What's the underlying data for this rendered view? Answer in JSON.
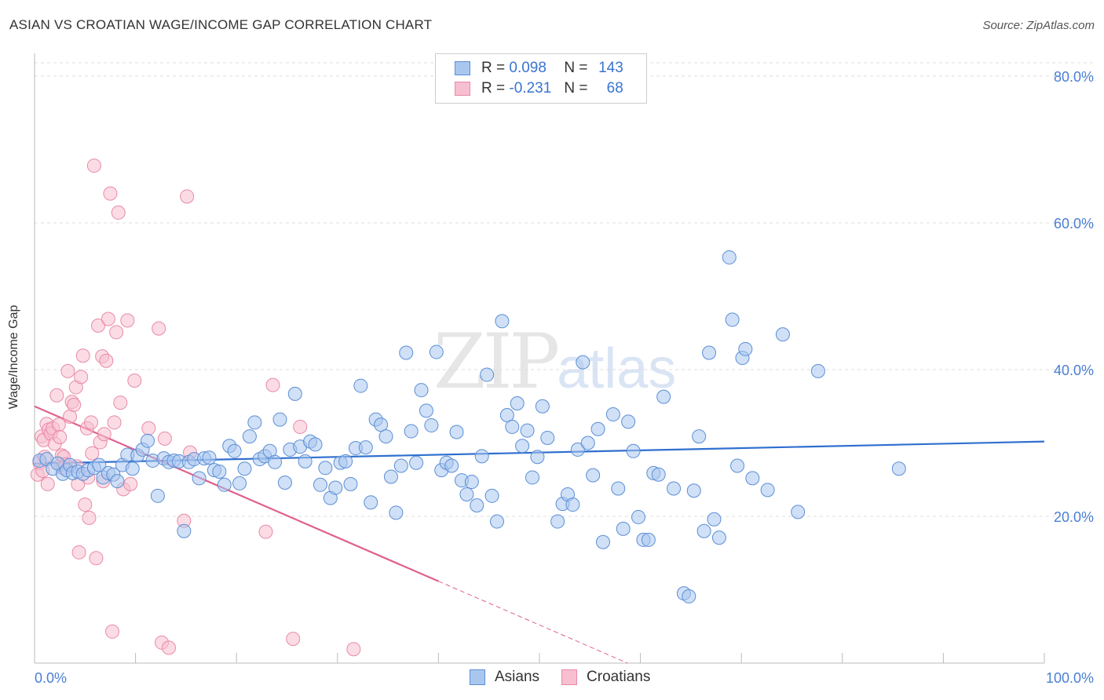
{
  "title": "ASIAN VS CROATIAN WAGE/INCOME GAP CORRELATION CHART",
  "source": "Source: ZipAtlas.com",
  "watermark": {
    "zip": "ZIP",
    "atlas": "atlas"
  },
  "legend": {
    "rows": [
      {
        "r_label": "R =",
        "r_value": "0.098",
        "n_label": "N =",
        "n_value": "143"
      },
      {
        "r_label": "R =",
        "r_value": "-0.231",
        "n_label": "N =",
        "n_value": "68"
      }
    ]
  },
  "bottom_legend": {
    "asians": "Asians",
    "croatians": "Croatians"
  },
  "colors": {
    "asians_fill": "#a9c7ee",
    "asians_stroke": "#5b8fd6",
    "asians_line": "#2f6fcf",
    "croatians_fill": "#f7bfd0",
    "croatians_stroke": "#e98aa8",
    "croatians_line": "#e0608e",
    "grid": "#dddddd",
    "tick_label": "#4a7fd4"
  },
  "chart_data": {
    "type": "scatter",
    "title": "ASIAN VS CROATIAN WAGE/INCOME GAP CORRELATION CHART",
    "xlabel": "",
    "ylabel": "Wage/Income Gap",
    "xlim": [
      0,
      100
    ],
    "ylim": [
      0,
      80
    ],
    "x_tick_labels": [
      "0.0%",
      "100.0%"
    ],
    "y_ticks": [
      20,
      40,
      60,
      80
    ],
    "y_tick_labels": [
      "20.0%",
      "40.0%",
      "60.0%",
      "80.0%"
    ],
    "series": [
      {
        "name": "Asians",
        "r": 0.098,
        "n": 143,
        "trend": {
          "x0": 0,
          "y0": 27.2,
          "x1": 100,
          "y1": 30.2,
          "solid_to": 100
        },
        "points": [
          [
            0.5,
            27.6
          ],
          [
            1.2,
            27.8
          ],
          [
            1.8,
            26.5
          ],
          [
            2.3,
            27.2
          ],
          [
            2.8,
            25.8
          ],
          [
            3.2,
            26.3
          ],
          [
            3.5,
            27.0
          ],
          [
            3.8,
            25.9
          ],
          [
            4.3,
            26.1
          ],
          [
            4.8,
            25.8
          ],
          [
            5.3,
            26.3
          ],
          [
            5.9,
            26.6
          ],
          [
            6.4,
            27.0
          ],
          [
            6.8,
            25.3
          ],
          [
            7.3,
            25.9
          ],
          [
            7.8,
            25.7
          ],
          [
            8.2,
            24.8
          ],
          [
            8.7,
            27.0
          ],
          [
            9.2,
            28.4
          ],
          [
            9.7,
            26.5
          ],
          [
            10.2,
            28.3
          ],
          [
            10.7,
            29.1
          ],
          [
            11.2,
            30.3
          ],
          [
            11.7,
            27.6
          ],
          [
            12.2,
            22.8
          ],
          [
            12.8,
            27.9
          ],
          [
            13.3,
            27.4
          ],
          [
            13.8,
            27.6
          ],
          [
            14.3,
            27.5
          ],
          [
            14.8,
            18.0
          ],
          [
            15.3,
            27.4
          ],
          [
            15.8,
            27.8
          ],
          [
            16.3,
            25.2
          ],
          [
            16.8,
            27.9
          ],
          [
            17.3,
            28.0
          ],
          [
            17.8,
            26.3
          ],
          [
            18.3,
            26.1
          ],
          [
            18.8,
            24.3
          ],
          [
            19.3,
            29.6
          ],
          [
            19.8,
            28.9
          ],
          [
            20.3,
            24.5
          ],
          [
            20.8,
            26.5
          ],
          [
            21.3,
            30.9
          ],
          [
            21.8,
            32.8
          ],
          [
            22.3,
            27.8
          ],
          [
            22.8,
            28.2
          ],
          [
            23.3,
            28.9
          ],
          [
            23.8,
            27.4
          ],
          [
            24.3,
            33.2
          ],
          [
            24.8,
            24.6
          ],
          [
            25.3,
            29.1
          ],
          [
            25.8,
            36.7
          ],
          [
            26.3,
            29.5
          ],
          [
            26.8,
            27.5
          ],
          [
            27.3,
            30.2
          ],
          [
            27.8,
            29.8
          ],
          [
            28.3,
            24.3
          ],
          [
            28.8,
            26.6
          ],
          [
            29.3,
            22.5
          ],
          [
            29.8,
            23.9
          ],
          [
            30.3,
            27.3
          ],
          [
            30.8,
            27.5
          ],
          [
            31.3,
            24.4
          ],
          [
            31.8,
            29.3
          ],
          [
            32.3,
            37.8
          ],
          [
            32.8,
            29.4
          ],
          [
            33.3,
            21.9
          ],
          [
            33.8,
            33.2
          ],
          [
            34.3,
            32.5
          ],
          [
            34.8,
            30.9
          ],
          [
            35.3,
            25.4
          ],
          [
            35.8,
            20.5
          ],
          [
            36.3,
            26.9
          ],
          [
            36.8,
            42.3
          ],
          [
            37.3,
            31.6
          ],
          [
            37.8,
            27.3
          ],
          [
            38.3,
            37.2
          ],
          [
            38.8,
            34.4
          ],
          [
            39.3,
            32.4
          ],
          [
            39.8,
            42.4
          ],
          [
            40.3,
            26.3
          ],
          [
            40.8,
            27.3
          ],
          [
            41.3,
            26.9
          ],
          [
            41.8,
            31.5
          ],
          [
            42.3,
            24.9
          ],
          [
            42.8,
            23.0
          ],
          [
            43.3,
            24.7
          ],
          [
            43.8,
            21.5
          ],
          [
            44.3,
            28.2
          ],
          [
            44.8,
            39.3
          ],
          [
            45.3,
            22.8
          ],
          [
            45.8,
            19.3
          ],
          [
            46.3,
            46.6
          ],
          [
            46.8,
            33.8
          ],
          [
            47.3,
            32.2
          ],
          [
            47.8,
            35.4
          ],
          [
            48.3,
            29.6
          ],
          [
            48.8,
            31.7
          ],
          [
            49.3,
            25.3
          ],
          [
            49.8,
            28.1
          ],
          [
            50.3,
            35.0
          ],
          [
            50.8,
            30.7
          ],
          [
            51.8,
            19.3
          ],
          [
            52.3,
            21.7
          ],
          [
            52.8,
            23.0
          ],
          [
            53.3,
            21.6
          ],
          [
            53.8,
            29.1
          ],
          [
            54.3,
            41.0
          ],
          [
            54.8,
            30.0
          ],
          [
            55.3,
            25.6
          ],
          [
            55.8,
            31.9
          ],
          [
            56.3,
            16.5
          ],
          [
            57.3,
            33.9
          ],
          [
            57.8,
            23.8
          ],
          [
            58.3,
            18.3
          ],
          [
            58.8,
            32.9
          ],
          [
            59.3,
            28.9
          ],
          [
            59.8,
            19.9
          ],
          [
            60.3,
            16.8
          ],
          [
            60.8,
            16.8
          ],
          [
            61.3,
            25.9
          ],
          [
            61.8,
            25.7
          ],
          [
            62.3,
            36.3
          ],
          [
            63.3,
            23.8
          ],
          [
            64.3,
            9.5
          ],
          [
            64.8,
            9.1
          ],
          [
            65.3,
            23.5
          ],
          [
            65.8,
            30.9
          ],
          [
            66.3,
            18.0
          ],
          [
            66.8,
            42.3
          ],
          [
            67.3,
            19.6
          ],
          [
            67.8,
            17.1
          ],
          [
            68.8,
            55.3
          ],
          [
            69.1,
            46.8
          ],
          [
            69.6,
            26.9
          ],
          [
            70.1,
            41.6
          ],
          [
            70.4,
            42.8
          ],
          [
            71.1,
            25.2
          ],
          [
            72.6,
            23.6
          ],
          [
            74.1,
            44.8
          ],
          [
            75.6,
            20.6
          ],
          [
            77.6,
            39.8
          ],
          [
            85.6,
            26.5
          ]
        ]
      },
      {
        "name": "Croatians",
        "r": -0.231,
        "n": 68,
        "trend": {
          "x0": 0,
          "y0": 35.0,
          "x1": 100,
          "y1": -24.6,
          "solid_to": 40
        },
        "points": [
          [
            0.3,
            25.7
          ],
          [
            0.5,
            27.3
          ],
          [
            0.7,
            30.9
          ],
          [
            0.9,
            30.4
          ],
          [
            1.0,
            28.1
          ],
          [
            1.2,
            32.6
          ],
          [
            1.4,
            31.8
          ],
          [
            1.6,
            31.3
          ],
          [
            1.8,
            32.0
          ],
          [
            2.0,
            29.9
          ],
          [
            2.2,
            36.5
          ],
          [
            2.4,
            32.5
          ],
          [
            2.6,
            27.0
          ],
          [
            2.7,
            28.3
          ],
          [
            2.9,
            28.1
          ],
          [
            3.1,
            27.1
          ],
          [
            3.3,
            39.8
          ],
          [
            3.5,
            33.6
          ],
          [
            3.7,
            35.6
          ],
          [
            3.9,
            35.2
          ],
          [
            4.1,
            37.6
          ],
          [
            4.3,
            24.4
          ],
          [
            4.4,
            15.1
          ],
          [
            4.6,
            39.0
          ],
          [
            4.8,
            41.9
          ],
          [
            5.0,
            21.6
          ],
          [
            5.2,
            32.0
          ],
          [
            5.4,
            19.8
          ],
          [
            5.6,
            32.8
          ],
          [
            5.7,
            28.6
          ],
          [
            5.9,
            67.8
          ],
          [
            6.1,
            14.3
          ],
          [
            6.3,
            46.0
          ],
          [
            6.5,
            30.1
          ],
          [
            6.7,
            41.8
          ],
          [
            6.9,
            31.2
          ],
          [
            7.1,
            41.2
          ],
          [
            7.3,
            46.9
          ],
          [
            7.5,
            64.0
          ],
          [
            7.7,
            4.3
          ],
          [
            7.9,
            32.8
          ],
          [
            8.1,
            45.1
          ],
          [
            8.3,
            61.4
          ],
          [
            8.5,
            35.5
          ],
          [
            8.8,
            23.7
          ],
          [
            9.2,
            46.7
          ],
          [
            9.5,
            24.4
          ],
          [
            9.9,
            38.5
          ],
          [
            11.3,
            32.0
          ],
          [
            12.3,
            45.6
          ],
          [
            12.6,
            2.8
          ],
          [
            12.9,
            30.6
          ],
          [
            13.3,
            2.1
          ],
          [
            14.8,
            19.4
          ],
          [
            15.1,
            63.6
          ],
          [
            15.4,
            28.7
          ],
          [
            22.9,
            17.9
          ],
          [
            23.6,
            37.9
          ],
          [
            25.6,
            3.3
          ],
          [
            26.3,
            32.2
          ],
          [
            31.6,
            1.9
          ],
          [
            2.8,
            26.6
          ],
          [
            4.2,
            26.8
          ],
          [
            2.5,
            30.8
          ],
          [
            6.8,
            24.8
          ],
          [
            5.3,
            25.3
          ],
          [
            1.3,
            24.4
          ],
          [
            0.8,
            26.2
          ]
        ]
      }
    ]
  }
}
